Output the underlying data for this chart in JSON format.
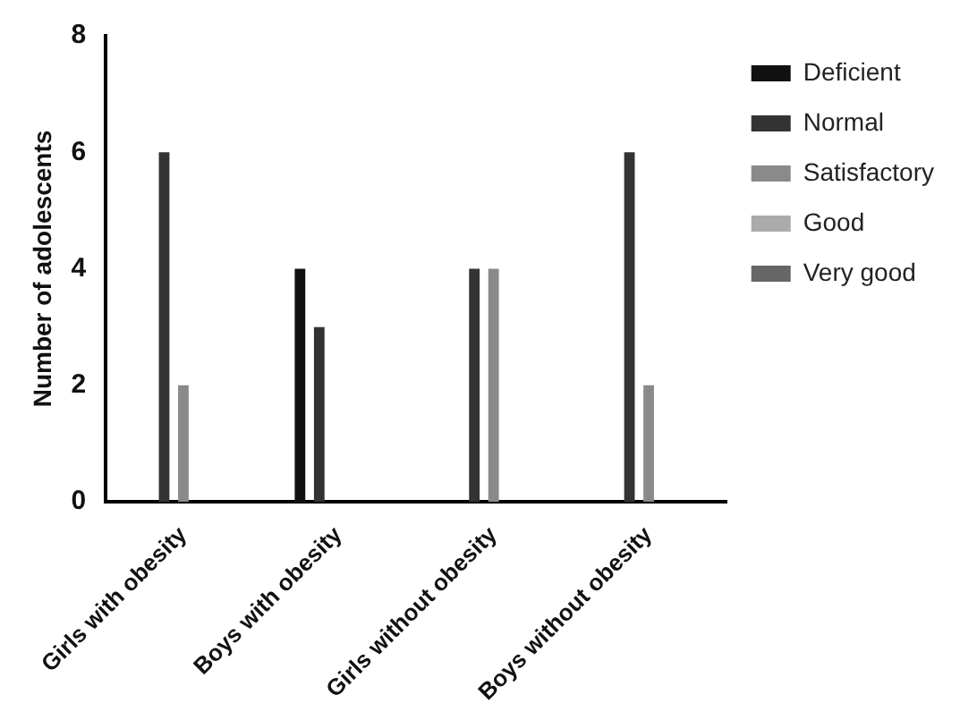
{
  "chart_data": {
    "type": "bar",
    "ylabel": "Number of adolescents",
    "categories": [
      "Girls with obesity",
      "Boys with obesity",
      "Girls without obesity",
      "Boys without obesity"
    ],
    "series": [
      {
        "name": "Deficient",
        "color": "#111111",
        "values": [
          0,
          4,
          0,
          0
        ]
      },
      {
        "name": "Normal",
        "color": "#333333",
        "values": [
          6,
          3,
          4,
          6
        ]
      },
      {
        "name": "Satisfactory",
        "color": "#8a8a8a",
        "values": [
          2,
          0,
          4,
          2
        ]
      },
      {
        "name": "Good",
        "color": "#aaaaaa",
        "values": [
          0,
          0,
          0,
          0
        ]
      },
      {
        "name": "Very good",
        "color": "#666666",
        "values": [
          0,
          0,
          0,
          0
        ]
      }
    ],
    "ylim": [
      0,
      8
    ],
    "yticks": [
      0,
      2,
      4,
      6,
      8
    ],
    "grid": false,
    "legend": "right"
  }
}
